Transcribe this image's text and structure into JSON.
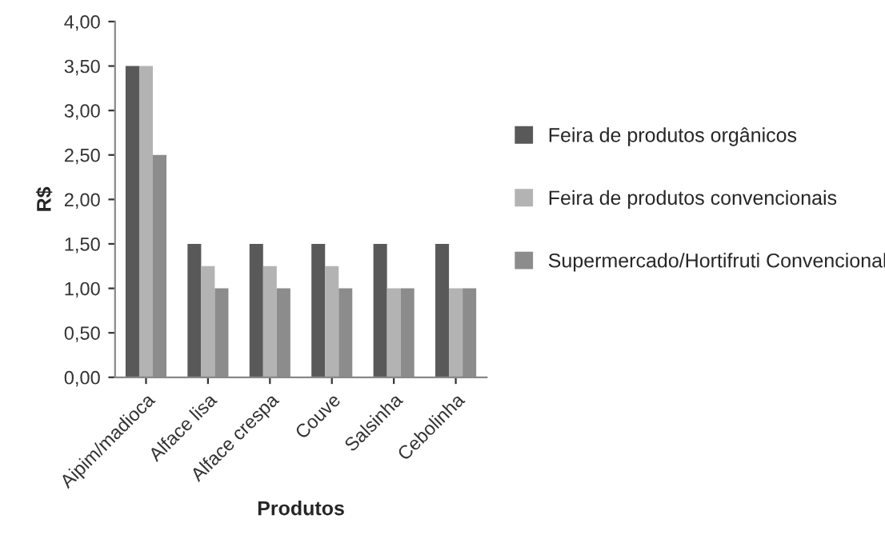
{
  "chart_data": {
    "type": "bar",
    "xlabel": "Produtos",
    "ylabel": "R$",
    "categories": [
      "Aipim/madioca",
      "Alface lisa",
      "Alface crespa",
      "Couve",
      "Salsinha",
      "Cebolinha"
    ],
    "series": [
      {
        "name": "Feira de produtos orgânicos",
        "color": "#595959",
        "values": [
          3.5,
          1.5,
          1.5,
          1.5,
          1.5,
          1.5
        ]
      },
      {
        "name": "Feira de produtos convencionais",
        "color": "#b3b3b3",
        "values": [
          3.5,
          1.25,
          1.25,
          1.25,
          1.0,
          1.0
        ]
      },
      {
        "name": "Supermercado/Hortifruti Convencional",
        "color": "#8c8c8c",
        "values": [
          2.5,
          1.0,
          1.0,
          1.0,
          1.0,
          1.0
        ]
      }
    ],
    "ylim": [
      0,
      4
    ],
    "yticks": [
      {
        "value": 0,
        "label": "0,00"
      },
      {
        "value": 0.5,
        "label": "0,50"
      },
      {
        "value": 1,
        "label": "1,00"
      },
      {
        "value": 1.5,
        "label": "1,50"
      },
      {
        "value": 2,
        "label": "2,00"
      },
      {
        "value": 2.5,
        "label": "2,50"
      },
      {
        "value": 3,
        "label": "3,00"
      },
      {
        "value": 3.5,
        "label": "3,50"
      },
      {
        "value": 4,
        "label": "4,00"
      }
    ],
    "grid": false,
    "legend": "right"
  }
}
